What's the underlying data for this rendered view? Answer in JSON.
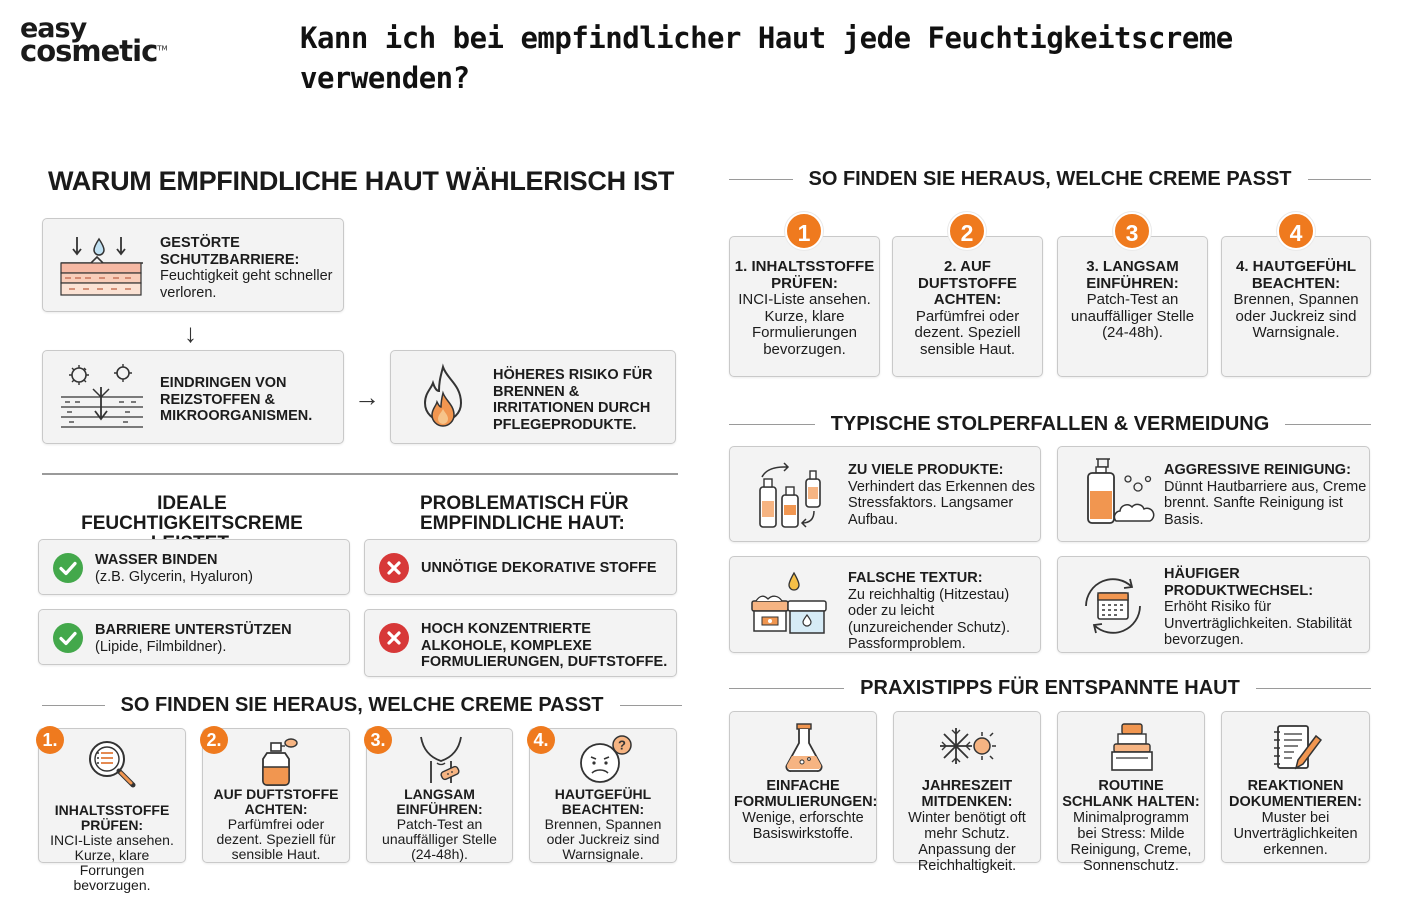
{
  "brand": {
    "line1": "easy",
    "line2": "cosmetic",
    "tm": "TM"
  },
  "page_title": "Kann ich bei empfindlicher Haut jede Feuchtigkeitscreme verwenden?",
  "left": {
    "why_title": "WARUM EMPFINDLICHE HAUT WÄHLERISCH IST",
    "barrier": {
      "title": "GESTÖRTE SCHUTZBARRIERE:",
      "text": "Feuchtigkeit geht schneller verloren.",
      "icon": "skin-layers-icon"
    },
    "down_arrow": "↓",
    "penetration": {
      "title": "EINDRINGEN VON REIZSTOFFEN & MIKROORGANISMEN.",
      "icon": "germ-skin-icon"
    },
    "right_arrow": "→",
    "risk": {
      "title": "HÖHERES RISIKO FÜR BRENNEN & IRRITATIONEN DURCH PFLEGEPRODUKTE.",
      "icon": "flame-icon"
    },
    "ideal_title": "IDEALE FEUCHTIGKEITSCREME LEISTET:",
    "problem_title": "PROBLEMATISCH FÜR EMPFINDLICHE HAUT:",
    "ideal_items": [
      {
        "title": "WASSER BINDEN",
        "text": "(z.B. Glycerin, Hyaluron)"
      },
      {
        "title": "BARRIERE UNTERSTÜTZEN",
        "text": "(Lipide, Filmbildner)."
      }
    ],
    "problem_items": [
      {
        "title": "UNNÖTIGE DEKORATIVE STOFFE"
      },
      {
        "title": "HOCH KONZENTRIERTE ALKOHOLE, KOMPLEXE FORMULIERUNGEN, DUFTSTOFFE."
      }
    ],
    "steps_title": "SO FINDEN SIE HERAUS, WELCHE CREME PASST",
    "steps": [
      {
        "num": "1.",
        "title": "INHALTSSTOFFE PRÜFEN:",
        "text": "INCI-Liste ansehen. Kurze, klare Forrungen bevorzugen.",
        "icon": "magnifier-list-icon"
      },
      {
        "num": "2.",
        "title": "AUF DUFTSTOFFE ACHTEN:",
        "text": "Parfümfrei oder dezent. Speziell für sensible Haut.",
        "icon": "perfume-bottle-icon"
      },
      {
        "num": "3.",
        "title": "LANGSAM EINFÜHREN:",
        "text": "Patch-Test an unauffälliger Stelle (24-48h).",
        "icon": "neck-patch-icon"
      },
      {
        "num": "4.",
        "title": "HAUTGEFÜHL BEACHTEN:",
        "text": "Brennen, Spannen oder Juckreiz sind Warnsignale.",
        "icon": "worried-face-icon"
      }
    ]
  },
  "right": {
    "steps_title": "SO FINDEN SIE HERAUS, WELCHE CREME PASST",
    "steps": [
      {
        "num": "1",
        "title": "1. INHALTSSTOFFE PRÜFEN:",
        "text": "INCI-Liste ansehen. Kurze, klare Formulierungen bevorzugen."
      },
      {
        "num": "2",
        "title": "2. AUF DUFTSTOFFE ACHTEN:",
        "text": "Parfümfrei oder dezent. Speziell sensible Haut."
      },
      {
        "num": "3",
        "title": "3. LANGSAM EINFÜHREN:",
        "text": "Patch-Test an unauffälliger Stelle (24-48h)."
      },
      {
        "num": "4",
        "title": "4. HAUTGEFÜHL BEACHTEN:",
        "text": "Brennen, Spannen oder Juckreiz sind Warnsignale."
      }
    ],
    "pitfalls_title": "TYPISCHE STOLPERFALLEN & VERMEIDUNG",
    "pitfalls": [
      {
        "title": "ZU VIELE PRODUKTE:",
        "text": "Verhindert das Erkennen des Stressfaktors. Langsamer Aufbau.",
        "icon": "bottles-icon"
      },
      {
        "title": "AGGRESSIVE REINIGUNG:",
        "text": "Dünnt Hautbarriere aus, Creme brennt. Sanfte Reinigung ist Basis.",
        "icon": "cleanser-foam-icon"
      },
      {
        "title": "FALSCHE TEXTUR:",
        "text": "Zu reichhaltig (Hitzestau) oder zu leicht (unzureichender Schutz). Passformproblem.",
        "icon": "cream-jars-icon"
      },
      {
        "title": "HÄUFIGER PRODUKTWECHSEL:",
        "text": "Erhöht Risiko für Unverträglichkeiten. Stabilität bevorzugen.",
        "icon": "calendar-cycle-icon"
      }
    ],
    "tips_title": "PRAXISTIPPS FÜR ENTSPANNTE HAUT",
    "tips": [
      {
        "title": "EINFACHE FORMULIERUNGEN:",
        "text": "Wenige, erforschte Basiswirkstoffe.",
        "icon": "flask-icon"
      },
      {
        "title": "JAHRESZEIT MITDENKEN:",
        "text": "Winter benötigt oft mehr Schutz. Anpassung der Reichhaltigkeit.",
        "icon": "snow-sun-icon"
      },
      {
        "title": "ROUTINE SCHLANK HALTEN:",
        "text": "Minimalprogramm bei Stress: Milde Reinigung, Creme, Sonnenschutz.",
        "icon": "stacked-jars-icon"
      },
      {
        "title": "REAKTIONEN DOKUMENTIEREN:",
        "text": "Muster bei Unverträglichkeiten erkennen.",
        "icon": "notebook-pen-icon"
      }
    ]
  },
  "colors": {
    "accent": "#ef7a1e",
    "check": "#43a84b",
    "cross": "#d73838",
    "card_bg": "#f3f3f3",
    "card_border": "#c9c9c9"
  }
}
